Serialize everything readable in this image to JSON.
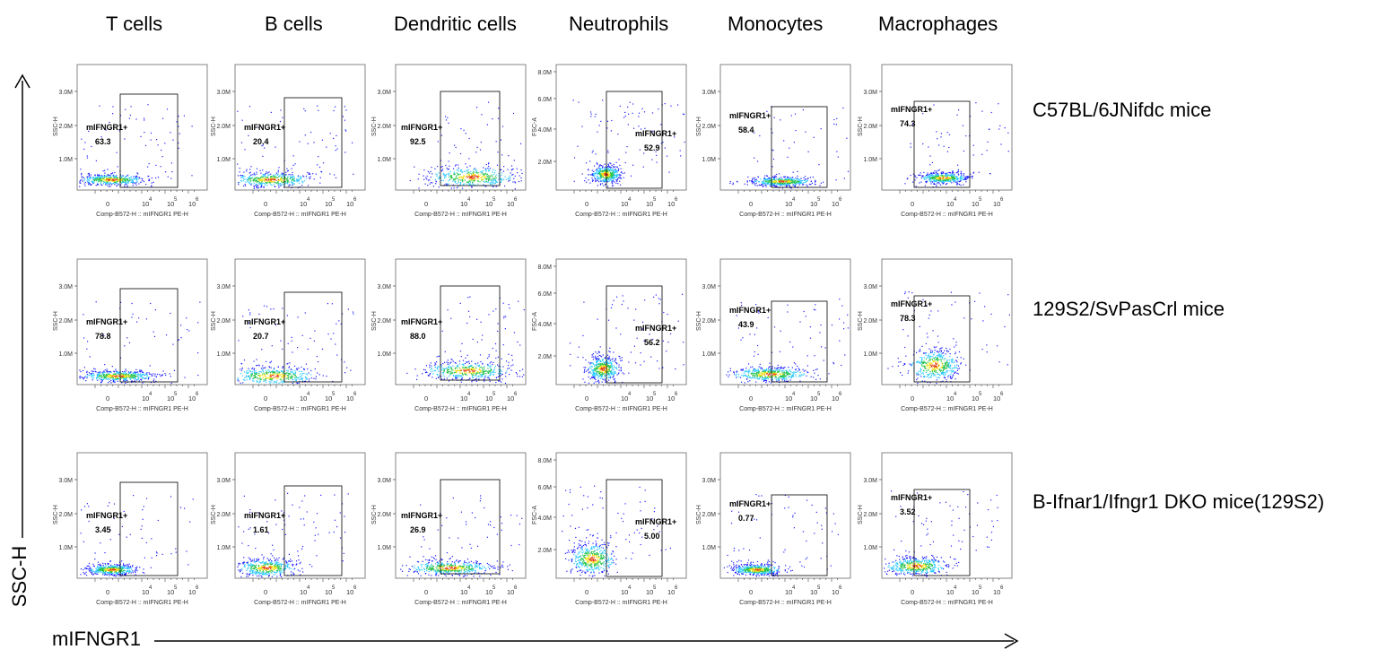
{
  "columns": [
    "T cells",
    "B cells",
    "Dendritic cells",
    "Neutrophils",
    "Monocytes",
    "Macrophages"
  ],
  "rows": [
    "C57BL/6JNifdc mice",
    "129S2/SvPasCrl mice",
    "B-Ifnar1/Ifngr1 DKO mice(129S2)"
  ],
  "axis_titles": {
    "y": "SSC-H",
    "x": "mIFNGR1"
  },
  "panel_text": {
    "x_axis": "Comp-B572-H :: mIFNGR1 PE-H",
    "y_axis_ssc": "SSC-H",
    "y_axis_fsc": "FSC-A",
    "gate_name": "mIFNGR1+",
    "y_ticks_ssc": [
      "3.0M",
      "2.0M",
      "1.0M"
    ],
    "y_ticks_fsc": [
      "8.0M",
      "6.0M",
      "4.0M",
      "2.0M"
    ],
    "x_ticks": [
      "0",
      "10",
      "10",
      "10",
      "4",
      "5",
      "6"
    ]
  },
  "colors": {
    "density_low": "#1f1fff",
    "density_mid": "#28c8ff",
    "density_high": "#27c24a",
    "density_top": "#f5e21a",
    "hot": "#e33a16"
  },
  "gate_values": [
    [
      "63.3",
      "20.4",
      "92.5",
      "52.9",
      "58.4",
      "74.3"
    ],
    [
      "78.8",
      "20.7",
      "88.0",
      "56.2",
      "43.9",
      "78.3"
    ],
    [
      "3.45",
      "1.61",
      "26.9",
      "5.00",
      "0.77",
      "3.52"
    ]
  ]
}
